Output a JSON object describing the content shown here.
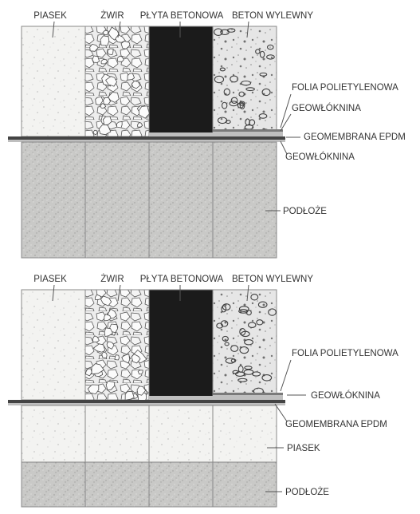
{
  "colors": {
    "sand": "#f3f3f1",
    "subsoil": "#c7c7c5",
    "concrete_plate": "#1b1b1b",
    "gravel_bg": "#ececec",
    "poured_concrete_bg": "#e4e4e4",
    "membrane_dark": "#444444",
    "membrane_light": "#bfbfbf",
    "foil": "#7a7a7a"
  },
  "icons": [
    "sand-texture",
    "gravel-texture",
    "poured-concrete-texture",
    "subsoil-texture"
  ],
  "diagrams": [
    {
      "labels": {
        "piasek": "PIASEK",
        "zwir": "ŻWIR",
        "plyta": "PŁYTA BETONOWA",
        "beton": "BETON WYLEWNY",
        "folia": "FOLIA POLIETYLENOWA",
        "geowloknina_top": "GEOWŁÓKNINA",
        "geomembrana": "GEOMEMBRANA EPDM",
        "geowloknina_bottom": "GEOWŁÓKNINA",
        "podloze": "PODŁOŻE"
      }
    },
    {
      "labels": {
        "piasek": "PIASEK",
        "zwir": "ŻWIR",
        "plyta": "PŁYTA BETONOWA",
        "beton": "BETON WYLEWNY",
        "folia": "FOLIA POLIETYLENOWA",
        "geowloknina": "GEOWŁÓKNINA",
        "geomembrana": "GEOMEMBRANA EPDM",
        "piasek_layer": "PIASEK",
        "podloze": "PODŁOŻE"
      }
    }
  ]
}
